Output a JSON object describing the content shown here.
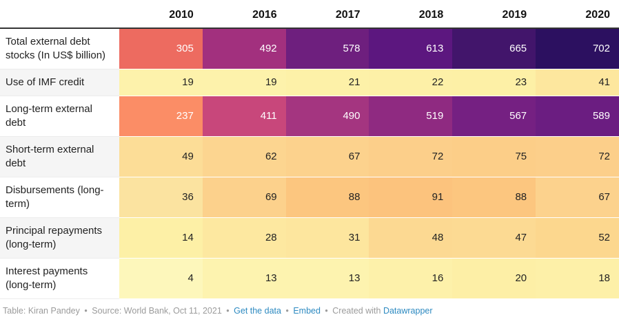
{
  "colors": {
    "header_rule": "#333333",
    "stripe_background": "#f5f5f5",
    "footer_text": "#9b9b9b",
    "link_blue": "#2d8ac1",
    "light_value_text": "#ffffff",
    "dark_value_text": "#222222"
  },
  "table": {
    "columns": [
      "2010",
      "2016",
      "2017",
      "2018",
      "2019",
      "2020"
    ],
    "rows": [
      {
        "label": "Total external debt stocks (In US$ billion)",
        "values": [
          "305",
          "492",
          "578",
          "613",
          "665",
          "702"
        ],
        "cell_colors": [
          "#ed6b60",
          "#a2307e",
          "#6e1f7e",
          "#5c177f",
          "#42156b",
          "#2c1060"
        ],
        "value_text_color": "#ffffff",
        "striped": false
      },
      {
        "label": "Use of IMF credit",
        "values": [
          "19",
          "19",
          "21",
          "22",
          "23",
          "41"
        ],
        "cell_colors": [
          "#fdf2ab",
          "#fdf2ab",
          "#fdf1a8",
          "#fdf0a7",
          "#fdf0a6",
          "#fde79e"
        ],
        "value_text_color": "#222222",
        "striped": true
      },
      {
        "label": "Long-term external debt",
        "values": [
          "237",
          "411",
          "490",
          "519",
          "567",
          "589"
        ],
        "cell_colors": [
          "#fb8d66",
          "#c8477b",
          "#a43580",
          "#8f2a81",
          "#752082",
          "#6b1d81"
        ],
        "value_text_color": "#ffffff",
        "striped": false
      },
      {
        "label": "Short-term external debt",
        "values": [
          "49",
          "62",
          "67",
          "72",
          "75",
          "72"
        ],
        "cell_colors": [
          "#fcdd97",
          "#fcd590",
          "#fcd28d",
          "#fccf8a",
          "#fcce88",
          "#fccf8a"
        ],
        "value_text_color": "#222222",
        "striped": true
      },
      {
        "label": "Disbursements (long-term)",
        "values": [
          "36",
          "69",
          "88",
          "91",
          "88",
          "67"
        ],
        "cell_colors": [
          "#fbe3a0",
          "#fcd18c",
          "#fcc67f",
          "#fcc37d",
          "#fcc67f",
          "#fcd28d"
        ],
        "value_text_color": "#222222",
        "striped": false
      },
      {
        "label": "Principal repayments (long-term)",
        "values": [
          "14",
          "28",
          "31",
          "48",
          "47",
          "52"
        ],
        "cell_colors": [
          "#fdf0a6",
          "#fde8a0",
          "#fde69e",
          "#fcd992",
          "#fcda93",
          "#fcd78e"
        ],
        "value_text_color": "#222222",
        "striped": true
      },
      {
        "label": "Interest payments (long-term)",
        "values": [
          "4",
          "13",
          "13",
          "16",
          "20",
          "18"
        ],
        "cell_colors": [
          "#fdf7bb",
          "#fdf3af",
          "#fdf3af",
          "#fdf1aa",
          "#fdefa6",
          "#fdf0a8"
        ],
        "value_text_color": "#222222",
        "striped": false
      }
    ]
  },
  "footer": {
    "credit": "Table: Kiran Pandey",
    "source": "Source: World Bank, Oct 11, 2021",
    "separator": "•",
    "get_data_link": "Get the data",
    "embed_link": "Embed",
    "created_with": "Created with",
    "brand_link": "Datawrapper"
  },
  "chart_data": {
    "type": "heatmap",
    "categories": [
      "2010",
      "2016",
      "2017",
      "2018",
      "2019",
      "2020"
    ],
    "series": [
      {
        "name": "Total external debt stocks (In US$ billion)",
        "values": [
          305,
          492,
          578,
          613,
          665,
          702
        ]
      },
      {
        "name": "Use of IMF credit",
        "values": [
          19,
          19,
          21,
          22,
          23,
          41
        ]
      },
      {
        "name": "Long-term external debt",
        "values": [
          237,
          411,
          490,
          519,
          567,
          589
        ]
      },
      {
        "name": "Short-term external debt",
        "values": [
          49,
          62,
          67,
          72,
          75,
          72
        ]
      },
      {
        "name": "Disbursements (long-term)",
        "values": [
          36,
          69,
          88,
          91,
          88,
          67
        ]
      },
      {
        "name": "Principal repayments (long-term)",
        "values": [
          14,
          28,
          31,
          48,
          47,
          52
        ]
      },
      {
        "name": "Interest payments (long-term)",
        "values": [
          4,
          13,
          13,
          16,
          20,
          18
        ]
      }
    ],
    "title": "",
    "xlabel": "",
    "ylabel": "",
    "legend": "none",
    "grid": "off",
    "palette": "magma reversed (low = light yellow, high = dark purple)",
    "unit": "US$ billion"
  }
}
